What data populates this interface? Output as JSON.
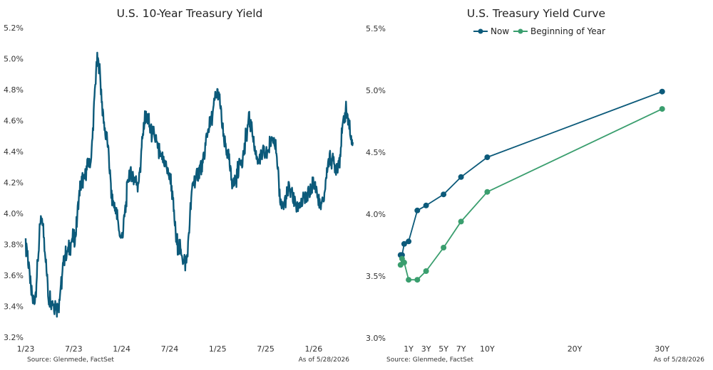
{
  "chart_data": [
    {
      "type": "line",
      "title": "U.S. 10-Year Treasury Yield",
      "xlabel": "",
      "ylabel": "",
      "x_ticks": [
        "1/23",
        "7/23",
        "1/24",
        "7/24",
        "1/25",
        "7/25",
        "1/26"
      ],
      "y_ticks": [
        "3.2%",
        "3.4%",
        "3.6%",
        "3.8%",
        "4.0%",
        "4.2%",
        "4.4%",
        "4.6%",
        "4.8%",
        "5.0%",
        "5.2%"
      ],
      "ylim": [
        3.2,
        5.2
      ],
      "xlim": [
        "2023-01",
        "2026-06"
      ],
      "grid": false,
      "series": [
        {
          "color": "#0c5a7a",
          "points": [
            [
              "2023-01",
              3.79
            ],
            [
              "2023-02",
              3.42
            ],
            [
              "2023-03",
              3.95
            ],
            [
              "2023-04",
              3.45
            ],
            [
              "2023-05",
              3.4
            ],
            [
              "2023-06",
              3.73
            ],
            [
              "2023-07",
              3.83
            ],
            [
              "2023-08",
              4.2
            ],
            [
              "2023-09",
              4.32
            ],
            [
              "2023-10",
              4.98
            ],
            [
              "2023-11",
              4.52
            ],
            [
              "2023-12",
              4.05
            ],
            [
              "2024-01",
              3.85
            ],
            [
              "2024-02",
              4.25
            ],
            [
              "2024-03",
              4.2
            ],
            [
              "2024-04",
              4.62
            ],
            [
              "2024-05",
              4.5
            ],
            [
              "2024-06",
              4.36
            ],
            [
              "2024-07",
              4.25
            ],
            [
              "2024-08",
              3.8
            ],
            [
              "2024-09",
              3.68
            ],
            [
              "2024-10",
              4.2
            ],
            [
              "2024-11",
              4.3
            ],
            [
              "2024-12",
              4.57
            ],
            [
              "2025-01",
              4.78
            ],
            [
              "2025-02",
              4.42
            ],
            [
              "2025-03",
              4.2
            ],
            [
              "2025-04",
              4.35
            ],
            [
              "2025-05",
              4.6
            ],
            [
              "2025-06",
              4.35
            ],
            [
              "2025-07",
              4.38
            ],
            [
              "2025-08",
              4.5
            ],
            [
              "2025-09",
              4.05
            ],
            [
              "2025-10",
              4.15
            ],
            [
              "2025-11",
              4.05
            ],
            [
              "2025-12",
              4.1
            ],
            [
              "2026-01",
              4.18
            ],
            [
              "2026-02",
              4.05
            ],
            [
              "2026-03",
              4.35
            ],
            [
              "2026-04",
              4.3
            ],
            [
              "2026-05",
              4.66
            ],
            [
              "2026-05-28",
              4.46
            ]
          ]
        }
      ],
      "source": "Source: Glenmede, FactSet",
      "as_of": "As of 5/28/2026"
    },
    {
      "type": "line",
      "title": "U.S. Treasury Yield Curve",
      "xlabel": "",
      "ylabel": "",
      "x_unit": "years to maturity",
      "x_ticks": [
        {
          "label": "1Y",
          "value": 1
        },
        {
          "label": "3Y",
          "value": 3
        },
        {
          "label": "5Y",
          "value": 5
        },
        {
          "label": "7Y",
          "value": 7
        },
        {
          "label": "10Y",
          "value": 10
        },
        {
          "label": "20Y",
          "value": 20
        },
        {
          "label": "30Y",
          "value": 30
        }
      ],
      "y_ticks": [
        "3.0%",
        "3.5%",
        "4.0%",
        "4.5%",
        "5.0%",
        "5.5%"
      ],
      "ylim": [
        3.0,
        5.5
      ],
      "xlim": [
        -3,
        35
      ],
      "grid": false,
      "legend": "top-center",
      "series": [
        {
          "name": "Now",
          "color": "#0c5a7a",
          "points": [
            [
              0.083,
              3.67
            ],
            [
              0.25,
              3.67
            ],
            [
              0.5,
              3.76
            ],
            [
              1,
              3.78
            ],
            [
              2,
              4.03
            ],
            [
              3,
              4.07
            ],
            [
              5,
              4.16
            ],
            [
              7,
              4.3
            ],
            [
              10,
              4.46
            ],
            [
              30,
              4.99
            ]
          ]
        },
        {
          "name": "Beginning of Year",
          "color": "#3a9e6e",
          "points": [
            [
              0.083,
              3.59
            ],
            [
              0.25,
              3.64
            ],
            [
              0.5,
              3.61
            ],
            [
              1,
              3.47
            ],
            [
              2,
              3.47
            ],
            [
              3,
              3.54
            ],
            [
              5,
              3.73
            ],
            [
              7,
              3.94
            ],
            [
              10,
              4.18
            ],
            [
              30,
              4.85
            ]
          ]
        }
      ],
      "source": "Source: Glenmede, FactSet",
      "as_of": "As of 5/28/2026"
    }
  ]
}
